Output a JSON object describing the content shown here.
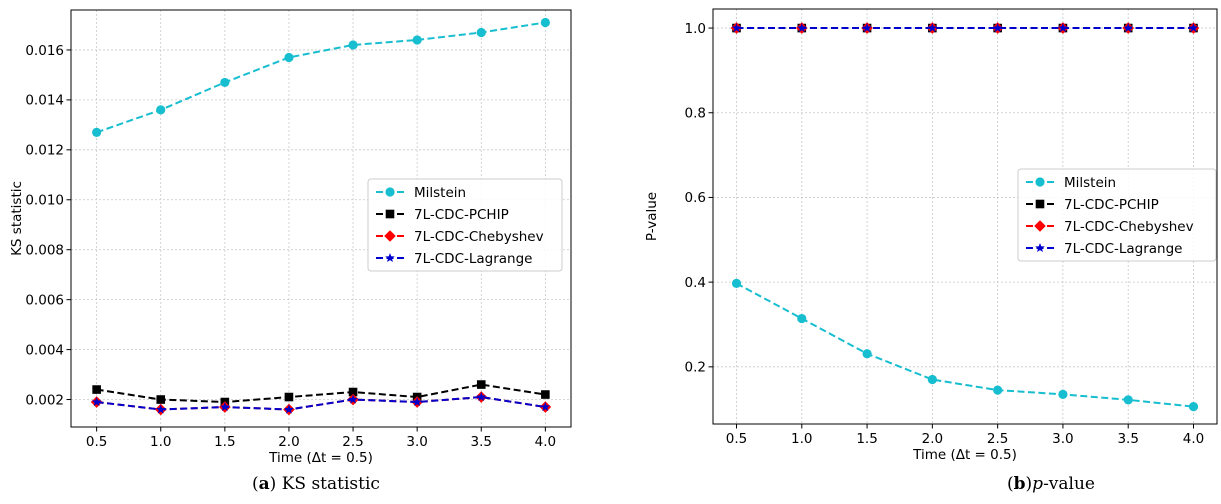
{
  "colors": {
    "milstein": "#17becf",
    "pchip": "#000000",
    "chebyshev": "#ff0000",
    "lagrange": "#0000cd"
  },
  "captions": {
    "a": {
      "paren_open": "(",
      "letter": "a",
      "paren_close": ")",
      "text": " KS statistic"
    },
    "b": {
      "paren_open": "(",
      "letter": "b",
      "paren_close": ")",
      "italic": "p",
      "text": "-value"
    }
  },
  "chart_data": [
    {
      "type": "line",
      "ylabel": "KS  statistic",
      "xlabel": "Time (Δt = 0.5)",
      "x": [
        0.5,
        1.0,
        1.5,
        2.0,
        2.5,
        3.0,
        3.5,
        4.0
      ],
      "x_tick_labels": [
        "0.5",
        "1.0",
        "1.5",
        "2.0",
        "2.5",
        "3.0",
        "3.5",
        "4.0"
      ],
      "xlim": [
        0.3,
        4.2
      ],
      "ylim": [
        0.0009,
        0.0176
      ],
      "y_ticks": [
        0.002,
        0.004,
        0.006,
        0.008,
        0.01,
        0.012,
        0.014,
        0.016
      ],
      "y_tick_labels": [
        "0.002",
        "0.004",
        "0.006",
        "0.008",
        "0.010",
        "0.012",
        "0.014",
        "0.016"
      ],
      "grid": true,
      "legend_position": "center-right",
      "series": [
        {
          "name": "Milstein",
          "marker": "circle",
          "color_key": "milstein",
          "values": [
            0.0127,
            0.0136,
            0.0147,
            0.0157,
            0.0162,
            0.0164,
            0.0167,
            0.0171
          ]
        },
        {
          "name": "7L-CDC-PCHIP",
          "marker": "square",
          "color_key": "pchip",
          "values": [
            0.0024,
            0.002,
            0.0019,
            0.0021,
            0.0023,
            0.0021,
            0.0026,
            0.0022
          ]
        },
        {
          "name": "7L-CDC-Chebyshev",
          "marker": "diamond",
          "color_key": "chebyshev",
          "values": [
            0.0019,
            0.0016,
            0.0017,
            0.0016,
            0.002,
            0.0019,
            0.0021,
            0.0017
          ]
        },
        {
          "name": "7L-CDC-Lagrange",
          "marker": "star",
          "color_key": "lagrange",
          "values": [
            0.0019,
            0.0016,
            0.0017,
            0.0016,
            0.002,
            0.0019,
            0.0021,
            0.0017
          ]
        }
      ]
    },
    {
      "type": "line",
      "ylabel": "P-value",
      "xlabel": "Time (Δt = 0.5)",
      "x": [
        0.5,
        1.0,
        1.5,
        2.0,
        2.5,
        3.0,
        3.5,
        4.0
      ],
      "x_tick_labels": [
        "0.5",
        "1.0",
        "1.5",
        "2.0",
        "2.5",
        "3.0",
        "3.5",
        "4.0"
      ],
      "xlim": [
        0.32,
        4.18
      ],
      "ylim": [
        0.065,
        1.045
      ],
      "y_ticks": [
        0.2,
        0.4,
        0.6,
        0.8,
        1.0
      ],
      "y_tick_labels": [
        "0.2",
        "0.4",
        "0.6",
        "0.8",
        "1.0"
      ],
      "grid": true,
      "legend_position": "center-right",
      "series": [
        {
          "name": "Milstein",
          "marker": "circle",
          "color_key": "milstein",
          "values": [
            0.397,
            0.314,
            0.231,
            0.17,
            0.145,
            0.135,
            0.122,
            0.106
          ]
        },
        {
          "name": "7L-CDC-PCHIP",
          "marker": "square",
          "color_key": "pchip",
          "values": [
            1.0,
            1.0,
            1.0,
            1.0,
            1.0,
            1.0,
            1.0,
            1.0
          ]
        },
        {
          "name": "7L-CDC-Chebyshev",
          "marker": "diamond",
          "color_key": "chebyshev",
          "values": [
            1.0,
            1.0,
            1.0,
            1.0,
            1.0,
            1.0,
            1.0,
            1.0
          ]
        },
        {
          "name": "7L-CDC-Lagrange",
          "marker": "star",
          "color_key": "lagrange",
          "values": [
            1.0,
            1.0,
            1.0,
            1.0,
            1.0,
            1.0,
            1.0,
            1.0
          ]
        }
      ]
    }
  ]
}
